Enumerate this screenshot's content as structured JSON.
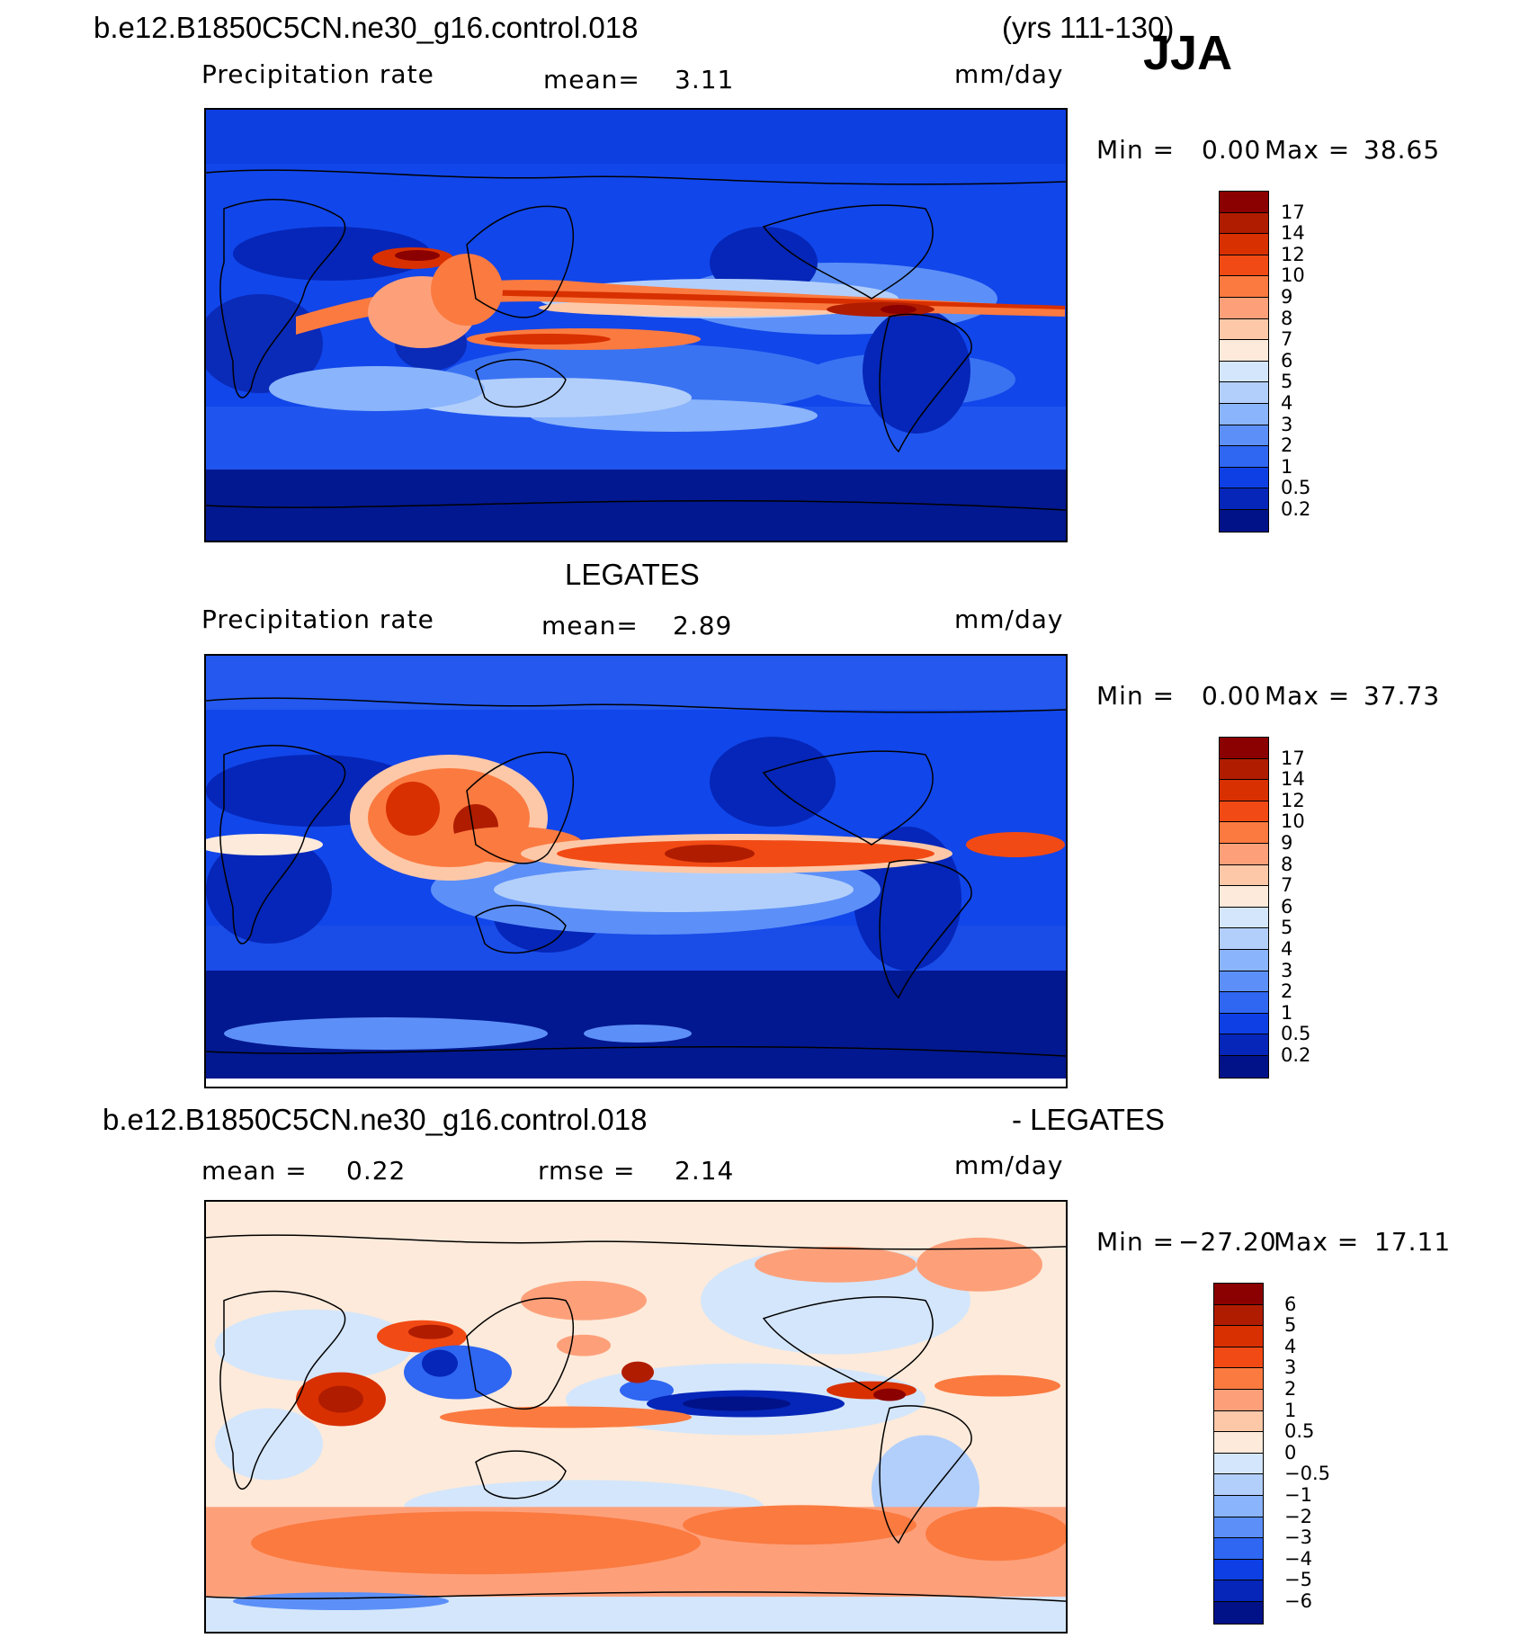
{
  "header": {
    "case": "b.e12.B1850C5CN.ne30_g16.control.018",
    "years": "(yrs 111-130)",
    "season": "JJA"
  },
  "panels": [
    {
      "title_left": "Precipitation rate",
      "mean_label": "mean=",
      "mean_value": "3.11",
      "units": "mm/day",
      "min_label": "Min =",
      "min_value": "0.00",
      "max_label": "Max =",
      "max_value": "38.65"
    },
    {
      "dataset": "LEGATES",
      "title_left": "Precipitation rate",
      "mean_label": "mean=",
      "mean_value": "2.89",
      "units": "mm/day",
      "min_label": "Min =",
      "min_value": "0.00",
      "max_label": "Max =",
      "max_value": "37.73"
    },
    {
      "case": "b.e12.B1850C5CN.ne30_g16.control.018",
      "diff_label": "- LEGATES",
      "mean_label": "mean =",
      "mean_value": "0.22",
      "rmse_label": "rmse =",
      "rmse_value": "2.14",
      "units": "mm/day",
      "min_label": "Min =",
      "min_value": "−27.20",
      "max_label": "Max =",
      "max_value": "17.11"
    }
  ],
  "colorbars": {
    "precip_levels": [
      "17",
      "14",
      "12",
      "10",
      "9",
      "8",
      "7",
      "6",
      "5",
      "4",
      "3",
      "2",
      "1",
      "0.5",
      "0.2"
    ],
    "precip_colors": [
      "#8b0000",
      "#b01c00",
      "#d83000",
      "#f24a14",
      "#fb7a40",
      "#fda07a",
      "#fdc8a8",
      "#fdeada",
      "#d4e6fb",
      "#b2cffb",
      "#8ab4fb",
      "#5c90f8",
      "#2f66f2",
      "#0d3fe4",
      "#0526b8",
      "#011288"
    ],
    "diff_levels": [
      "6",
      "5",
      "4",
      "3",
      "2",
      "1",
      "0.5",
      "0",
      "−0.5",
      "−1",
      "−2",
      "−3",
      "−4",
      "−5",
      "−6"
    ],
    "diff_colors": [
      "#8b0000",
      "#b01c00",
      "#d83000",
      "#f24a14",
      "#fb7a40",
      "#fda07a",
      "#fdc8a8",
      "#fdeada",
      "#d4e6fb",
      "#b2cffb",
      "#8ab4fb",
      "#5c90f8",
      "#2f66f2",
      "#0d3fe4",
      "#0526b8",
      "#011288"
    ]
  }
}
